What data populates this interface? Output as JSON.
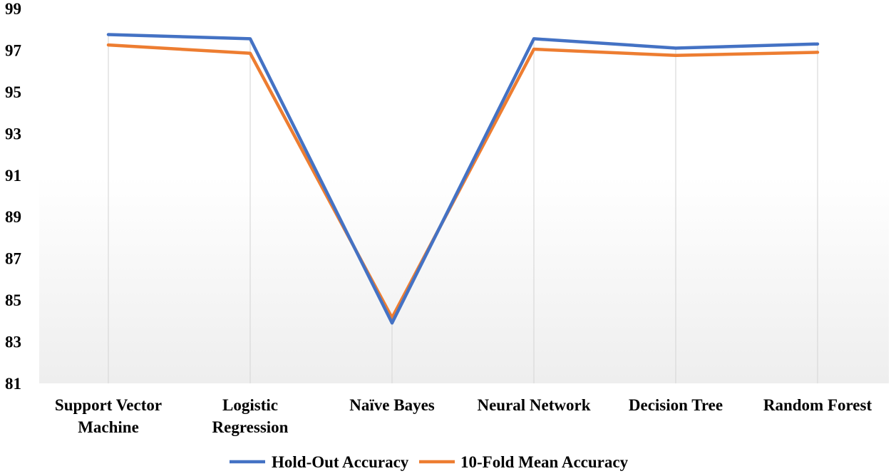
{
  "chart_data": {
    "type": "line",
    "title": "",
    "xlabel": "",
    "ylabel": "",
    "categories": [
      [
        "Support Vector",
        "Machine"
      ],
      [
        "Logistic",
        "Regression"
      ],
      [
        "Naïve Bayes"
      ],
      [
        "Neural Network"
      ],
      [
        "Decision Tree"
      ],
      [
        "Random Forest"
      ]
    ],
    "ylim": [
      81,
      99
    ],
    "yticks": [
      "81",
      "83",
      "85",
      "87",
      "89",
      "91",
      "93",
      "95",
      "97",
      "99"
    ],
    "grid": "vertical",
    "legend_position": "bottom",
    "series": [
      {
        "name": "Hold-Out Accuracy",
        "color": "#4472C4",
        "values": [
          97.75,
          97.55,
          83.9,
          97.55,
          97.1,
          97.3
        ]
      },
      {
        "name": "10-Fold Mean Accuracy",
        "color": "#ED7D31",
        "values": [
          97.25,
          96.85,
          84.15,
          97.05,
          96.75,
          96.9
        ]
      }
    ]
  }
}
